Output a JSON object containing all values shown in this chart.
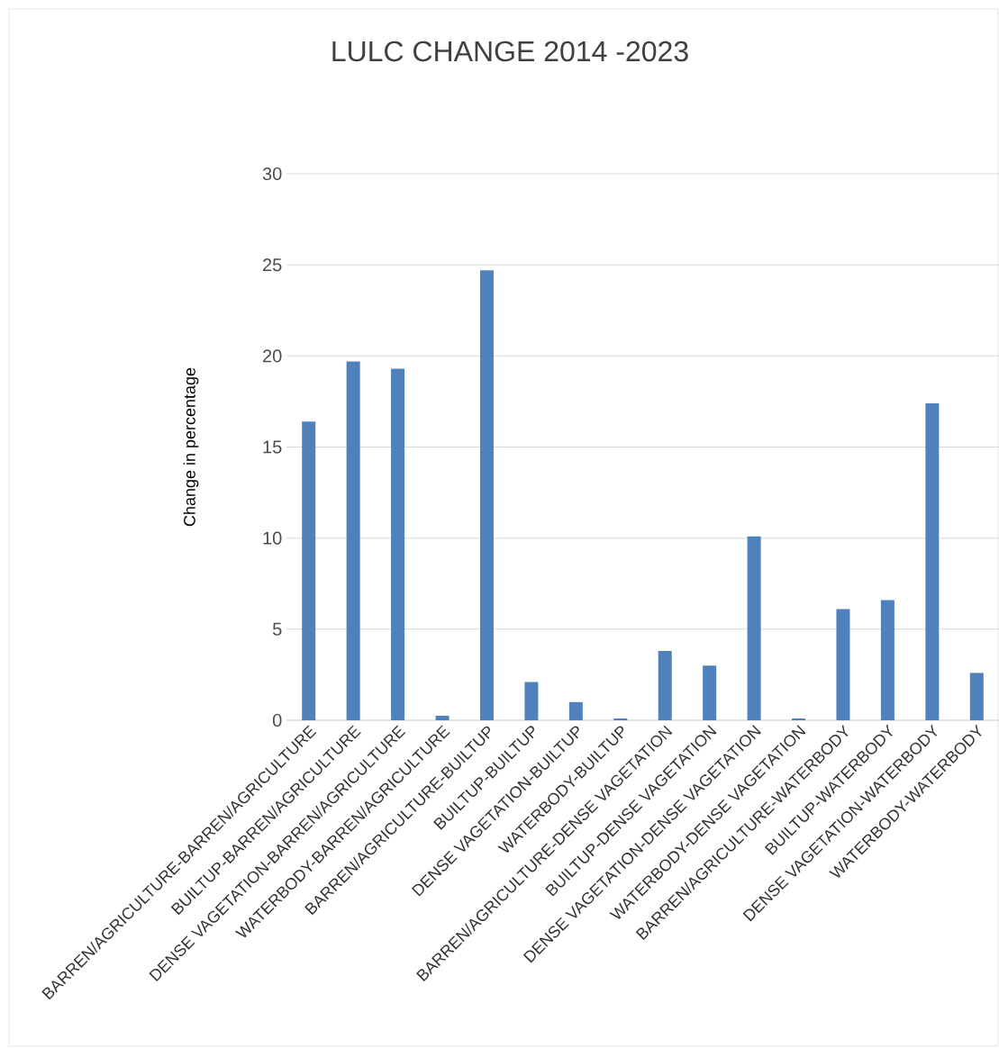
{
  "chart_data": {
    "type": "bar",
    "title": "LULC CHANGE 2014 -2023",
    "ylabel": "Change in percentage",
    "categories": [
      "BARREN/AGRICULTURE-BARREN/AGRICULTURE",
      "BUILTUP-BARREN/AGRICULTURE",
      "DENSE VAGETATION-BARREN/AGRICULTURE",
      "WATERBODY-BARREN/AGRICULTURE",
      "BARREN/AGRICULTURE-BUILTUP",
      "BUILTUP-BUILTUP",
      "DENSE VAGETATION-BUILTUP",
      "WATERBODY-BUILTUP",
      "BARREN/AGRICULTURE-DENSE VAGETATION",
      "BUILTUP-DENSE VAGETATION",
      "DENSE VAGETATION-DENSE VAGETATION",
      "WATERBODY-DENSE VAGETATION",
      "BARREN/AGRICULTURE-WATERBODY",
      "BUILTUP-WATERBODY",
      "DENSE VAGETATION-WATERBODY",
      "WATERBODY-WATERBODY"
    ],
    "values": [
      16.4,
      19.7,
      19.3,
      0.25,
      24.7,
      2.1,
      1.0,
      0.1,
      3.8,
      3.0,
      10.1,
      0.1,
      6.1,
      6.6,
      17.4,
      2.6
    ],
    "color": "#4f81bd",
    "ylim": [
      0,
      30
    ],
    "yticks": [
      0,
      5,
      10,
      15,
      20,
      25,
      30
    ],
    "grid": "y"
  }
}
